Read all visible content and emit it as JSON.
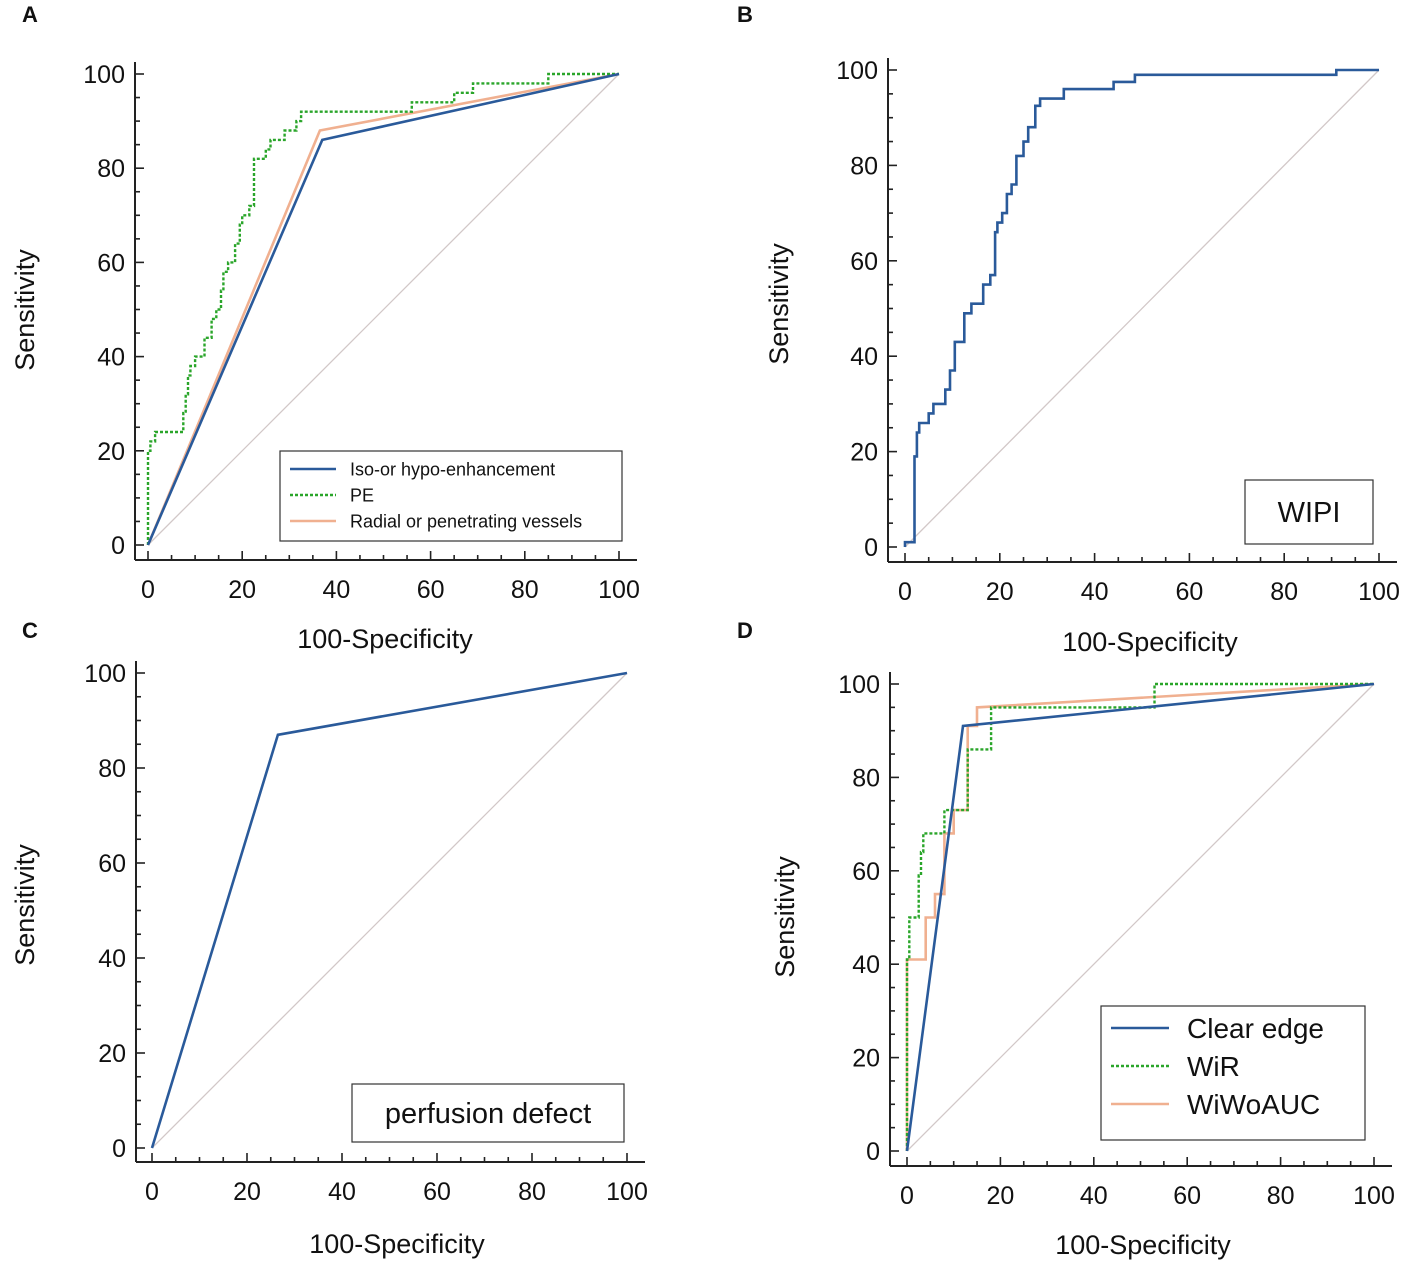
{
  "figure": {
    "colors": {
      "blue": "#2a5a9a",
      "green": "#2aa52a",
      "orange": "#f0b090",
      "diagonal": "#d2c8c8",
      "axis": "#222222"
    }
  },
  "chart_data": [
    {
      "panel": "A",
      "type": "line",
      "title": "",
      "xlabel": "100-Specificity",
      "ylabel": "Sensitivity",
      "xlim": [
        0,
        100
      ],
      "ylim": [
        0,
        100
      ],
      "xticks": [
        "0",
        "20",
        "40",
        "60",
        "80",
        "100"
      ],
      "yticks": [
        "0",
        "20",
        "40",
        "60",
        "80",
        "100"
      ],
      "legend": {
        "position": "bottom-right"
      },
      "series": [
        {
          "name": "Iso-or hypo-enhancement",
          "color": "#2a5a9a",
          "style": "solid",
          "x": [
            0,
            37,
            100
          ],
          "y": [
            0,
            86,
            100
          ]
        },
        {
          "name": "PE",
          "color": "#2aa52a",
          "style": "dotted",
          "x": [
            0,
            0,
            0.5,
            0.5,
            1.5,
            1.5,
            7.5,
            7.5,
            8,
            8,
            8.5,
            8.5,
            9,
            9,
            10,
            10,
            12,
            12,
            13.5,
            13.5,
            14.5,
            14.5,
            15.5,
            15.5,
            16,
            16,
            17,
            17,
            18.5,
            18.5,
            19.5,
            19.5,
            20,
            20,
            21.5,
            21.5,
            22.5,
            22.5,
            25,
            25,
            26,
            26,
            29,
            29,
            31.5,
            31.5,
            32.5,
            32.5,
            33.5,
            33.5,
            56,
            56,
            65,
            65,
            66.5,
            66.5,
            69,
            69,
            85,
            85,
            100
          ],
          "y": [
            0,
            20,
            20,
            22,
            22,
            24,
            24,
            28,
            28,
            32,
            32,
            36,
            36,
            38,
            38,
            40,
            40,
            44,
            44,
            48,
            48,
            50,
            50,
            54,
            54,
            58,
            58,
            60,
            60,
            64,
            64,
            68,
            68,
            70,
            70,
            72,
            72,
            82,
            82,
            84,
            84,
            86,
            86,
            88,
            88,
            90,
            90,
            92,
            92,
            92,
            92,
            94,
            94,
            96,
            96,
            96,
            96,
            98,
            98,
            100,
            100
          ]
        },
        {
          "name": "Radial or penetrating vessels",
          "color": "#f0b090",
          "style": "solid",
          "x": [
            0,
            36.5,
            100
          ],
          "y": [
            0,
            88,
            100
          ]
        }
      ]
    },
    {
      "panel": "B",
      "type": "line",
      "title": "",
      "xlabel": "100-Specificity",
      "ylabel": "Sensitivity",
      "xlim": [
        0,
        100
      ],
      "ylim": [
        0,
        100
      ],
      "xticks": [
        "0",
        "20",
        "40",
        "60",
        "80",
        "100"
      ],
      "yticks": [
        "0",
        "20",
        "40",
        "60",
        "80",
        "100"
      ],
      "legend": {
        "position": "bottom-right",
        "boxed_label": "WIPI"
      },
      "series": [
        {
          "name": "WIPI",
          "color": "#2a5a9a",
          "style": "solid",
          "x": [
            0,
            0,
            2,
            2,
            2.5,
            2.5,
            3,
            3,
            5,
            5,
            6,
            6,
            8.5,
            8.5,
            9.5,
            9.5,
            10.5,
            10.5,
            12.5,
            12.5,
            14,
            14,
            16.5,
            16.5,
            18,
            18,
            19,
            19,
            19.5,
            19.5,
            20.5,
            20.5,
            21.5,
            21.5,
            22.5,
            22.5,
            23.5,
            23.5,
            25,
            25,
            26,
            26,
            27.5,
            27.5,
            28.5,
            28.5,
            33.5,
            33.5,
            35.5,
            35.5,
            44,
            44,
            48.5,
            48.5,
            91,
            91,
            100
          ],
          "y": [
            0,
            1,
            1,
            19,
            19,
            24,
            24,
            26,
            26,
            28,
            28,
            30,
            30,
            33,
            33,
            37,
            37,
            43,
            43,
            49,
            49,
            51,
            51,
            55,
            55,
            57,
            57,
            66,
            66,
            68,
            68,
            70,
            70,
            74,
            74,
            76,
            76,
            82,
            82,
            85,
            85,
            88,
            88,
            92.5,
            92.5,
            94,
            94,
            96,
            96,
            96,
            96,
            97.5,
            97.5,
            99,
            99,
            100,
            100
          ]
        }
      ]
    },
    {
      "panel": "C",
      "type": "line",
      "title": "",
      "xlabel": "100-Specificity",
      "ylabel": "Sensitivity",
      "xlim": [
        0,
        100
      ],
      "ylim": [
        0,
        100
      ],
      "xticks": [
        "0",
        "20",
        "40",
        "60",
        "80",
        "100"
      ],
      "yticks": [
        "0",
        "20",
        "40",
        "60",
        "80",
        "100"
      ],
      "legend": {
        "position": "bottom-right",
        "boxed_label": "perfusion defect"
      },
      "series": [
        {
          "name": "perfusion defect",
          "color": "#2a5a9a",
          "style": "solid",
          "x": [
            0,
            26.5,
            100
          ],
          "y": [
            0,
            87,
            100
          ]
        }
      ]
    },
    {
      "panel": "D",
      "type": "line",
      "title": "",
      "xlabel": "100-Specificity",
      "ylabel": "Sensitivity",
      "xlim": [
        0,
        100
      ],
      "ylim": [
        0,
        100
      ],
      "xticks": [
        "0",
        "20",
        "40",
        "60",
        "80",
        "100"
      ],
      "yticks": [
        "0",
        "20",
        "40",
        "60",
        "80",
        "100"
      ],
      "legend": {
        "position": "bottom-right"
      },
      "series": [
        {
          "name": "Clear edge",
          "color": "#2a5a9a",
          "style": "solid",
          "x": [
            0,
            12,
            100
          ],
          "y": [
            0,
            91,
            100
          ]
        },
        {
          "name": "WiR",
          "color": "#2aa52a",
          "style": "dotted",
          "x": [
            0,
            0,
            0.5,
            0.5,
            2.5,
            2.5,
            3,
            3,
            3.5,
            3.5,
            5,
            5,
            8,
            8,
            10,
            10,
            13,
            13,
            15,
            15,
            18,
            18,
            53,
            53,
            100
          ],
          "y": [
            0,
            41,
            41,
            50,
            50,
            59,
            59,
            64,
            64,
            68,
            68,
            68,
            68,
            73,
            73,
            73,
            73,
            86,
            86,
            86,
            86,
            95,
            95,
            100,
            100
          ]
        },
        {
          "name": "WiWoAUC",
          "color": "#f0b090",
          "style": "solid",
          "x": [
            0,
            0,
            4,
            4,
            6,
            6,
            8,
            8,
            10,
            10,
            13,
            13,
            15,
            15,
            100
          ],
          "y": [
            0,
            41,
            41,
            50,
            50,
            55,
            55,
            68,
            68,
            73,
            73,
            91,
            91,
            95,
            100
          ]
        }
      ]
    }
  ]
}
